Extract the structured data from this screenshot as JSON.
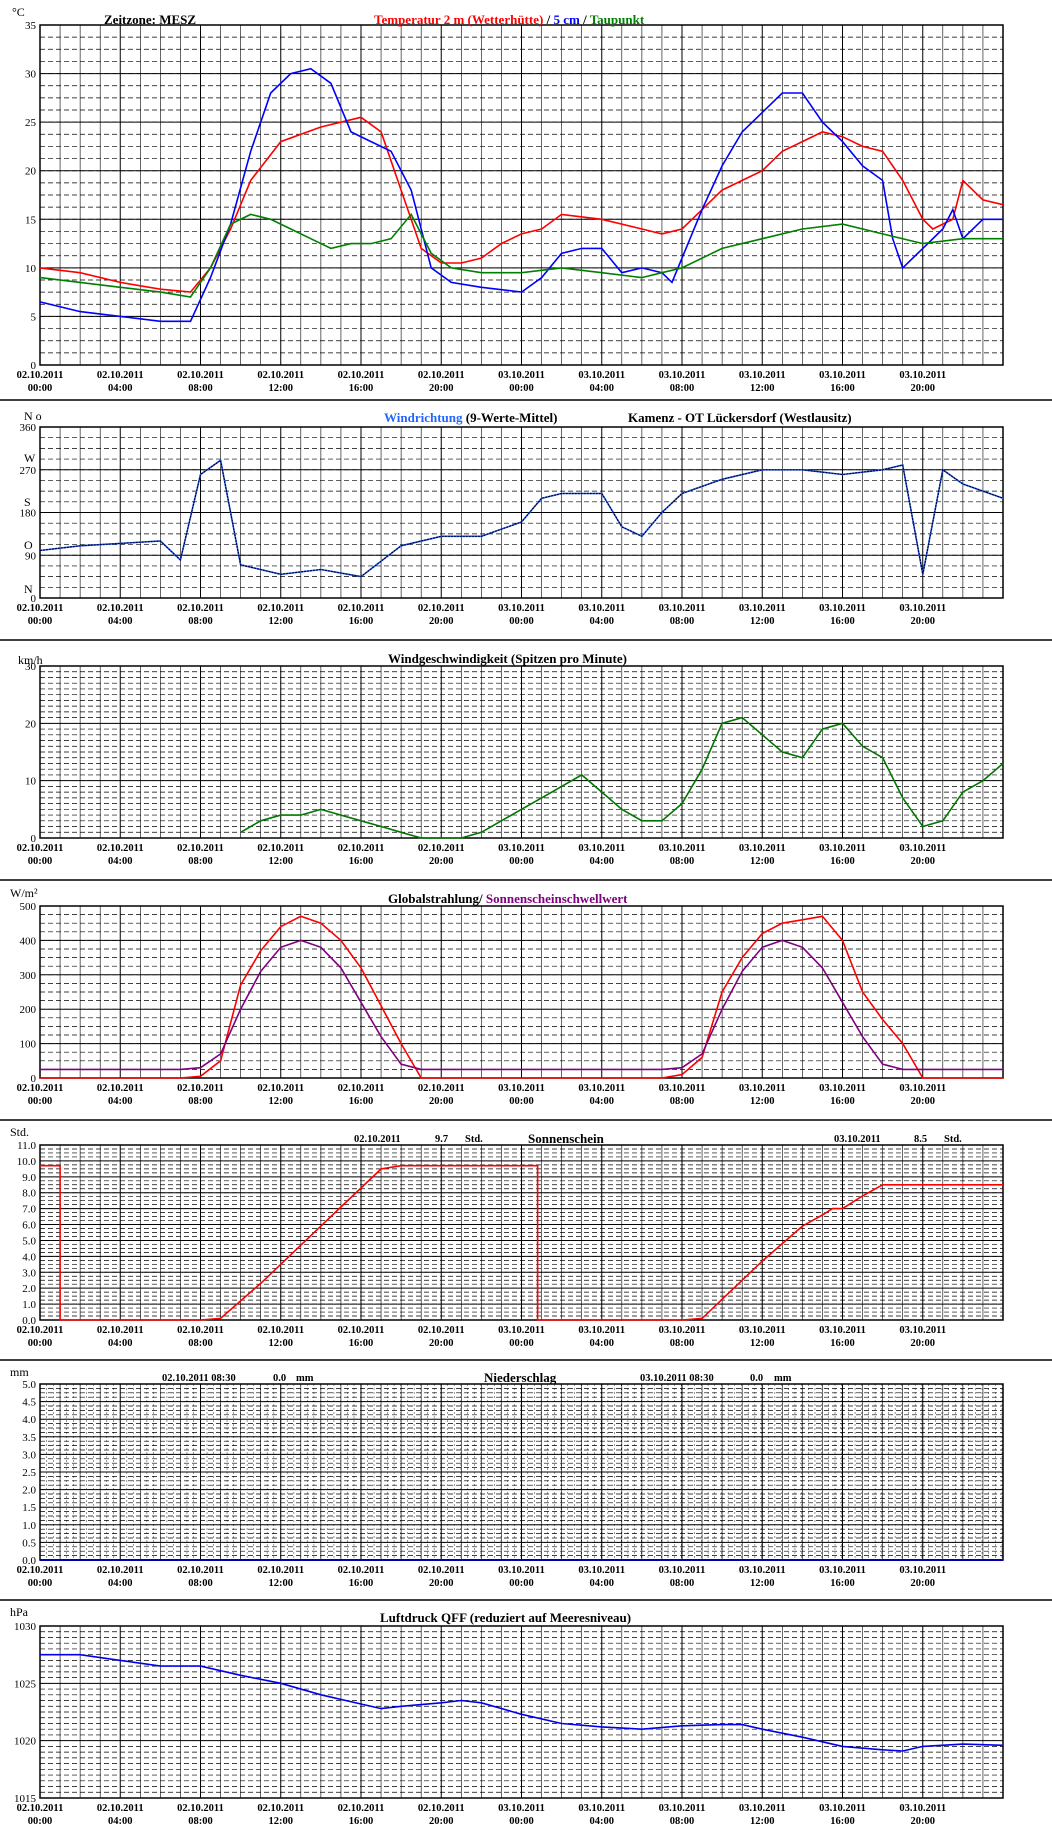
{
  "x_labels": [
    [
      "02.10.2011",
      "00:00"
    ],
    [
      "02.10.2011",
      "04:00"
    ],
    [
      "02.10.2011",
      "08:00"
    ],
    [
      "02.10.2011",
      "12:00"
    ],
    [
      "02.10.2011",
      "16:00"
    ],
    [
      "02.10.2011",
      "20:00"
    ],
    [
      "03.10.2011",
      "00:00"
    ],
    [
      "03.10.2011",
      "04:00"
    ],
    [
      "03.10.2011",
      "08:00"
    ],
    [
      "03.10.2011",
      "12:00"
    ],
    [
      "03.10.2011",
      "16:00"
    ],
    [
      "03.10.2011",
      "20:00"
    ]
  ],
  "colors": {
    "temp": "#ff0000",
    "soil": "#0000ff",
    "dew": "#008000",
    "winddir": "#2266ff",
    "winddir_avg": "#000033",
    "wind": "#007700",
    "glob": "#ff0000",
    "sunthr": "#800080",
    "sun": "#ff0000",
    "precip": "#0000aa",
    "press": "#0000ee",
    "purple": "#800080"
  },
  "panel1": {
    "unit": "°C",
    "timezone": "Zeitzone: MESZ",
    "title_a": "Temperatur 2 m (Wetterhütte)",
    "title_sep1": " / ",
    "title_b": "5 cm",
    "title_sep2": " / ",
    "title_c": "Taupunkt",
    "yticks": [
      "35",
      "30",
      "25",
      "20",
      "15",
      "10",
      "5",
      "0"
    ]
  },
  "panel2": {
    "unit": "N o",
    "title_a": "Windrichtung",
    "title_b": " (9-Werte-Mittel)",
    "station": "Kamenz - OT Lückersdorf (Westlausitz)",
    "yticks": [
      "360",
      "270",
      "180",
      "90",
      "0"
    ],
    "dir_letters": [
      "W",
      "S",
      "O",
      "N"
    ]
  },
  "panel3": {
    "unit": "km/h",
    "title": "Windgeschwindigkeit (Spitzen pro Minute)",
    "yticks": [
      "30",
      "20",
      "10",
      "0"
    ]
  },
  "panel4": {
    "unit": "W/m²",
    "title_a": "Globalstrahlung/",
    "title_b": " Sonnenscheinschwellwert",
    "yticks": [
      "500",
      "400",
      "300",
      "200",
      "100",
      "0"
    ]
  },
  "panel5": {
    "unit": "Std.",
    "title": "Sonnenschein",
    "day1_date": "02.10.2011",
    "day1_value": "9.7",
    "day1_unit": "Std.",
    "day2_date": "03.10.2011",
    "day2_value": "8.5",
    "day2_unit": "Std.",
    "yticks": [
      "11.0",
      "10.0",
      "9.0",
      "8.0",
      "7.0",
      "6.0",
      "5.0",
      "4.0",
      "3.0",
      "2.0",
      "1.0",
      "0.0"
    ]
  },
  "panel6": {
    "unit": "mm",
    "title": "Niederschlag",
    "day1_date": "02.10.2011 08:30",
    "day1_value": "0.0",
    "day1_unit": "mm",
    "day2_date": "03.10.2011 08:30",
    "day2_value": "0.0",
    "day2_unit": "mm",
    "yticks": [
      "5.0",
      "4.5",
      "4.0",
      "3.5",
      "3.0",
      "2.5",
      "2.0",
      "1.5",
      "1.0",
      "0.5",
      "0.0"
    ]
  },
  "panel7": {
    "unit": "hPa",
    "title": "Luftdruck QFF (reduziert auf Meeresniveau)",
    "yticks": [
      "1030",
      "1025",
      "1020",
      "1015"
    ]
  },
  "chart_data": [
    {
      "type": "line",
      "title": "Temperatur 2 m (Wetterhütte) / 5 cm / Taupunkt",
      "ylabel": "°C",
      "ylim": [
        0,
        35
      ],
      "x_unit": "hours since 02.10.2011 00:00",
      "xlim": [
        0,
        48
      ],
      "series": [
        {
          "name": "Temperatur 2 m (Wetterhütte)",
          "x": [
            0,
            2,
            4,
            6,
            7.5,
            8.5,
            9.5,
            10.5,
            12,
            14,
            16,
            17,
            18,
            19,
            20,
            21,
            22,
            23,
            24,
            25,
            26,
            28,
            30,
            31,
            32,
            33,
            34,
            36,
            37,
            38,
            39,
            40,
            41,
            42,
            43,
            44,
            44.5,
            45,
            45.5,
            46,
            47,
            48
          ],
          "y": [
            10,
            9.5,
            8.5,
            7.8,
            7.5,
            10,
            14,
            19,
            23,
            24.5,
            25.5,
            24,
            18,
            12,
            10.5,
            10.5,
            11,
            12.5,
            13.5,
            14,
            15.5,
            15,
            14,
            13.5,
            14,
            16,
            18,
            20,
            22,
            23,
            24,
            23.5,
            22.5,
            22,
            19,
            15,
            14,
            14.5,
            15,
            19,
            17,
            16.5
          ]
        },
        {
          "name": "5 cm",
          "x": [
            0,
            2,
            4,
            6,
            7.5,
            8.5,
            9.5,
            10.5,
            11.5,
            12.5,
            13.5,
            14.5,
            15.5,
            16.5,
            17.5,
            18.5,
            19.5,
            20.5,
            22,
            24,
            25,
            26,
            27,
            28,
            29,
            30,
            31,
            31.5,
            32,
            33,
            34,
            35,
            36,
            37,
            38,
            39,
            40,
            41,
            42,
            42.5,
            43,
            44,
            45,
            45.5,
            46,
            47,
            48
          ],
          "y": [
            6.5,
            5.5,
            5,
            4.5,
            4.5,
            9,
            14.5,
            22,
            28,
            30,
            30.5,
            29,
            24,
            23,
            22,
            18,
            10,
            8.5,
            8,
            7.5,
            9,
            11.5,
            12,
            12,
            9.5,
            10,
            9.5,
            8.5,
            11,
            16,
            20.5,
            24,
            26,
            28,
            28,
            25,
            23,
            20.5,
            19,
            13,
            10,
            12,
            14,
            16,
            13,
            15,
            15
          ]
        },
        {
          "name": "Taupunkt",
          "x": [
            0,
            2,
            4,
            6,
            7.5,
            8.5,
            9.5,
            10.5,
            11.5,
            12.5,
            13.5,
            14.5,
            15.5,
            16.5,
            17.5,
            18.5,
            19.5,
            20.5,
            22,
            24,
            26,
            28,
            30,
            31,
            32,
            34,
            36,
            38,
            40,
            42,
            44,
            46,
            48
          ],
          "y": [
            9,
            8.5,
            8,
            7.5,
            7,
            10,
            14.5,
            15.5,
            15,
            14,
            13,
            12,
            12.5,
            12.5,
            13,
            15.5,
            11.5,
            10,
            9.5,
            9.5,
            10,
            9.5,
            9,
            9.5,
            10,
            12,
            13,
            14,
            14.5,
            13.5,
            12.5,
            13,
            13
          ]
        }
      ]
    },
    {
      "type": "line",
      "title": "Windrichtung (9-Werte-Mittel)",
      "ylabel": "N o",
      "ylim": [
        0,
        360
      ],
      "x_unit": "hours since 02.10.2011 00:00",
      "xlim": [
        0,
        48
      ],
      "series": [
        {
          "name": "Windrichtung (9-Werte-Mittel)",
          "x": [
            0,
            2,
            4,
            6,
            7,
            8,
            9,
            10,
            12,
            14,
            16,
            18,
            20,
            22,
            24,
            25,
            26,
            28,
            29,
            30,
            31,
            32,
            34,
            36,
            38,
            40,
            42,
            43,
            44,
            45,
            46,
            48
          ],
          "y": [
            100,
            110,
            115,
            120,
            80,
            260,
            290,
            70,
            50,
            60,
            45,
            110,
            130,
            130,
            160,
            210,
            220,
            220,
            150,
            130,
            180,
            220,
            250,
            270,
            270,
            260,
            270,
            280,
            50,
            270,
            240,
            210
          ]
        }
      ]
    },
    {
      "type": "line",
      "title": "Windgeschwindigkeit (Spitzen pro Minute)",
      "ylabel": "km/h",
      "ylim": [
        0,
        30
      ],
      "x_unit": "hours since 02.10.2011 00:00",
      "xlim": [
        0,
        48
      ],
      "series": [
        {
          "name": "Windgeschwindigkeit (Spitzen pro Minute)",
          "x": [
            10,
            11,
            12,
            13,
            14,
            15,
            16,
            17,
            18,
            19,
            20,
            21,
            22,
            23,
            24,
            25,
            26,
            27,
            28,
            29,
            30,
            31,
            32,
            33,
            34,
            35,
            36,
            37,
            38,
            39,
            40,
            41,
            42,
            43,
            44,
            45,
            46,
            47,
            48
          ],
          "y": [
            1,
            3,
            4,
            4,
            5,
            4,
            3,
            2,
            1,
            0,
            0,
            0,
            1,
            3,
            5,
            7,
            9,
            11,
            8,
            5,
            3,
            3,
            6,
            12,
            20,
            21,
            18,
            15,
            14,
            19,
            20,
            16,
            14,
            7,
            2,
            3,
            8,
            10,
            13
          ]
        }
      ]
    },
    {
      "type": "line",
      "title": "Globalstrahlung/ Sonnenscheinschwellwert",
      "ylabel": "W/m²",
      "ylim": [
        0,
        500
      ],
      "x_unit": "hours since 02.10.2011 00:00",
      "xlim": [
        0,
        48
      ],
      "series": [
        {
          "name": "Globalstrahlung",
          "x": [
            0,
            7,
            8,
            9,
            10,
            11,
            12,
            13,
            14,
            15,
            16,
            17,
            18,
            19,
            24,
            31,
            32,
            33,
            34,
            35,
            36,
            37,
            38,
            39,
            40,
            41,
            42,
            43,
            44,
            48
          ],
          "y": [
            0,
            0,
            5,
            50,
            270,
            370,
            440,
            470,
            450,
            400,
            320,
            210,
            100,
            0,
            0,
            0,
            10,
            60,
            250,
            350,
            420,
            450,
            460,
            470,
            400,
            250,
            170,
            100,
            0,
            0
          ]
        },
        {
          "name": "Sonnenscheinschwellwert",
          "x": [
            0,
            7,
            8,
            9,
            10,
            11,
            12,
            13,
            14,
            15,
            16,
            17,
            18,
            19,
            24,
            31,
            32,
            33,
            34,
            35,
            36,
            37,
            38,
            39,
            40,
            41,
            42,
            43,
            44,
            48
          ],
          "y": [
            25,
            25,
            30,
            70,
            200,
            310,
            380,
            400,
            380,
            320,
            220,
            120,
            40,
            25,
            25,
            25,
            30,
            70,
            200,
            310,
            380,
            400,
            380,
            320,
            220,
            120,
            40,
            25,
            25,
            25
          ]
        }
      ]
    },
    {
      "type": "line",
      "title": "Sonnenschein",
      "ylabel": "Std.",
      "ylim": [
        0,
        11
      ],
      "x_unit": "hours since 02.10.2011 00:00",
      "xlim": [
        0,
        48
      ],
      "series": [
        {
          "name": "Sonnenschein",
          "x": [
            0,
            1,
            1,
            8,
            9,
            10,
            11,
            12,
            13,
            14,
            15,
            16,
            17,
            18,
            19,
            20,
            21,
            22,
            23,
            24,
            24.8,
            24.8,
            32,
            33,
            34,
            35,
            36,
            37,
            38,
            39,
            39.5,
            40,
            41,
            42,
            43,
            44,
            45,
            46,
            47,
            48
          ],
          "y": [
            9.7,
            9.7,
            0,
            0,
            0.1,
            1.2,
            2.3,
            3.5,
            4.7,
            5.9,
            7.1,
            8.3,
            9.5,
            9.7,
            9.7,
            9.7,
            9.7,
            9.7,
            9.7,
            9.7,
            9.7,
            0,
            0,
            0.1,
            1.3,
            2.5,
            3.7,
            4.8,
            5.9,
            6.6,
            7,
            7,
            7.8,
            8.5,
            8.5,
            8.5,
            8.5,
            8.5,
            8.5,
            8.5
          ]
        }
      ]
    },
    {
      "type": "line",
      "title": "Niederschlag",
      "ylabel": "mm",
      "ylim": [
        0,
        5
      ],
      "x_unit": "hours since 02.10.2011 00:00",
      "xlim": [
        0,
        48
      ],
      "series": [
        {
          "name": "Niederschlag",
          "x": [
            0,
            48
          ],
          "y": [
            0,
            0
          ]
        }
      ]
    },
    {
      "type": "line",
      "title": "Luftdruck QFF (reduziert auf Meeresniveau)",
      "ylabel": "hPa",
      "ylim": [
        1015,
        1030
      ],
      "x_unit": "hours since 02.10.2011 00:00",
      "xlim": [
        0,
        48
      ],
      "series": [
        {
          "name": "Luftdruck QFF",
          "x": [
            0,
            2,
            4,
            6,
            8,
            10,
            12,
            14,
            16,
            17,
            18,
            20,
            21,
            22,
            24,
            26,
            28,
            30,
            32,
            34,
            35,
            36,
            38,
            40,
            42,
            43,
            44,
            46,
            48
          ],
          "y": [
            1027.5,
            1027.5,
            1027,
            1026.5,
            1026.5,
            1025.7,
            1025,
            1024,
            1023.2,
            1022.8,
            1023,
            1023.3,
            1023.5,
            1023.3,
            1022.3,
            1021.5,
            1021.2,
            1021,
            1021.3,
            1021.4,
            1021.4,
            1021,
            1020.3,
            1019.5,
            1019.2,
            1019.1,
            1019.5,
            1019.7,
            1019.6
          ]
        }
      ]
    }
  ]
}
